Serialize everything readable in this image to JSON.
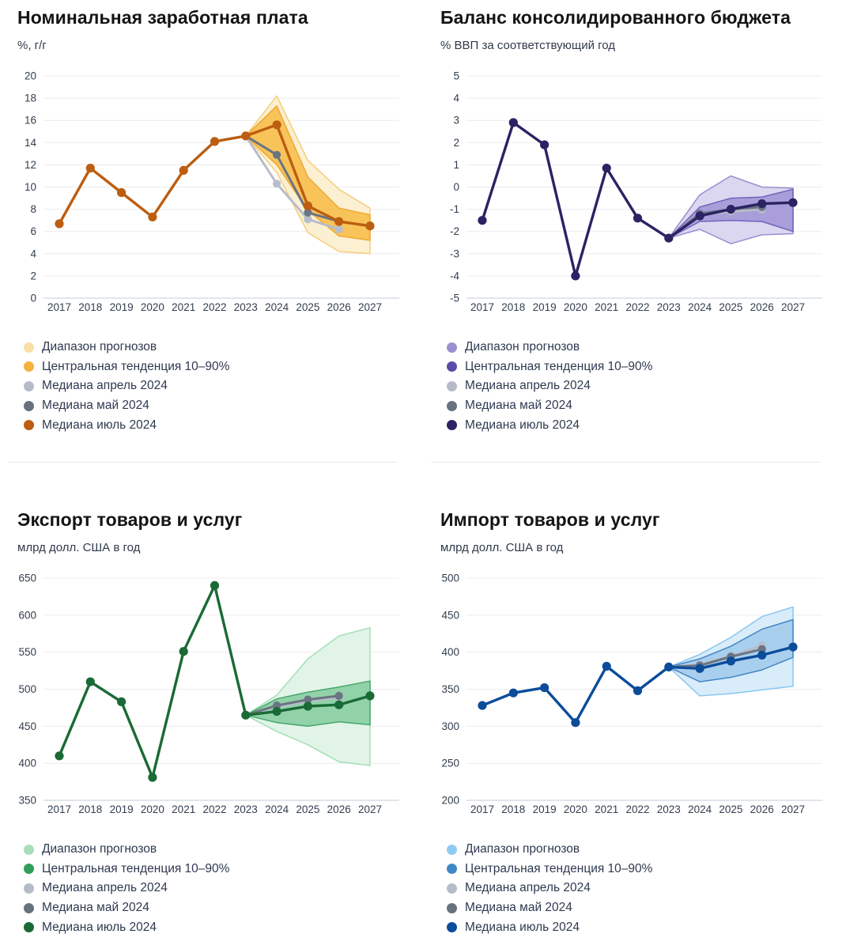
{
  "layout": {
    "background": "#FFFFFF",
    "grid": "2x2",
    "divider_color": "#E8E8E8",
    "gridline_color": "#ECECEF",
    "axisline_color": "#C3CCDA"
  },
  "chart_data": [
    {
      "type": "line",
      "title": "Номинальная заработная плата",
      "subtitle": "%, г/г",
      "years": [
        2017,
        2018,
        2019,
        2020,
        2021,
        2022,
        2023,
        2024,
        2025,
        2026,
        2027
      ],
      "y_axis": {
        "min": 0,
        "max": 20,
        "step": 2
      },
      "colors": {
        "range": {
          "fill": "#FCF0D2",
          "stroke": "#F6CD7C"
        },
        "central": {
          "fill": "#F8C45A",
          "stroke": "#F0A82F"
        },
        "april": "#B7BDC9",
        "may": "#6A7482",
        "july": "#BC5D10"
      },
      "bands": {
        "range": {
          "label": "Диапазон прогнозов",
          "years": [
            2023,
            2024,
            2025,
            2026,
            2027
          ],
          "lo": [
            14.6,
            11.3,
            5.9,
            4.2,
            4.0
          ],
          "hi": [
            14.6,
            18.2,
            12.4,
            9.8,
            8.1
          ]
        },
        "central": {
          "label": "Центральная тенденция 10–90%",
          "years": [
            2023,
            2024,
            2025,
            2026,
            2027
          ],
          "lo": [
            14.6,
            12.0,
            7.9,
            5.6,
            5.2
          ],
          "hi": [
            14.6,
            17.3,
            10.9,
            8.1,
            7.5
          ]
        }
      },
      "series": {
        "median_april": {
          "label": "Медиана апрель 2024",
          "years": [
            2023,
            2024,
            2025,
            2026
          ],
          "values": [
            14.6,
            10.3,
            7.1,
            6.2
          ]
        },
        "median_may": {
          "label": "Медиана май 2024",
          "years": [
            2023,
            2024,
            2025,
            2026
          ],
          "values": [
            14.6,
            12.9,
            7.7,
            6.9
          ]
        },
        "median_july": {
          "label": "Медиана июль 2024",
          "years": [
            2017,
            2018,
            2019,
            2020,
            2021,
            2022,
            2023,
            2024,
            2025,
            2026,
            2027
          ],
          "values": [
            6.7,
            11.7,
            9.5,
            7.3,
            11.5,
            14.1,
            14.6,
            15.6,
            8.3,
            6.9,
            6.5
          ]
        }
      },
      "legend": [
        {
          "swatch": "#F9DFA6",
          "label": "Диапазон прогнозов"
        },
        {
          "swatch": "#F6B13E",
          "label": "Центральная тенденция 10–90%"
        },
        {
          "swatch": "#B6BCC7",
          "label": "Медиана апрель 2024"
        },
        {
          "swatch": "#68727F",
          "label": "Медиана май 2024"
        },
        {
          "swatch": "#BC5D10",
          "label": "Медиана июль 2024"
        }
      ]
    },
    {
      "type": "line",
      "title": "Баланс консолидированного бюджета",
      "subtitle": "% ВВП за соответствующий год",
      "years": [
        2017,
        2018,
        2019,
        2020,
        2021,
        2022,
        2023,
        2024,
        2025,
        2026,
        2027
      ],
      "y_axis": {
        "min": -5,
        "max": 5,
        "step": 1
      },
      "colors": {
        "range": {
          "fill": "#DCD7F0",
          "stroke": "#9A8ED2"
        },
        "central": {
          "fill": "#A99ED9",
          "stroke": "#7164BE"
        },
        "april": "#B7BDC9",
        "may": "#6A7482",
        "july": "#2B2363"
      },
      "bands": {
        "range": {
          "label": "Диапазон прогнозов",
          "years": [
            2023,
            2024,
            2025,
            2026,
            2027
          ],
          "lo": [
            -2.3,
            -1.9,
            -2.55,
            -2.15,
            -2.1
          ],
          "hi": [
            -2.3,
            -0.35,
            0.5,
            0.0,
            -0.05
          ]
        },
        "central": {
          "label": "Центральная тенденция 10–90%",
          "years": [
            2023,
            2024,
            2025,
            2026,
            2027
          ],
          "lo": [
            -2.3,
            -1.55,
            -1.5,
            -1.55,
            -2.0
          ],
          "hi": [
            -2.3,
            -0.9,
            -0.5,
            -0.45,
            -0.1
          ]
        }
      },
      "series": {
        "median_april": {
          "label": "Медиана апрель 2024",
          "years": [
            2023,
            2024,
            2025,
            2026
          ],
          "values": [
            -2.3,
            -1.25,
            -1.1,
            -1.0
          ]
        },
        "median_may": {
          "label": "Медиана май 2024",
          "years": [
            2023,
            2024,
            2025,
            2026
          ],
          "values": [
            -2.3,
            -1.2,
            -1.0,
            -0.9
          ]
        },
        "median_july": {
          "label": "Медиана июль 2024",
          "years": [
            2017,
            2018,
            2019,
            2020,
            2021,
            2022,
            2023,
            2024,
            2025,
            2026,
            2027
          ],
          "values": [
            -1.5,
            2.9,
            1.9,
            -4.0,
            0.85,
            -1.4,
            -2.3,
            -1.3,
            -1.0,
            -0.75,
            -0.7
          ]
        }
      },
      "legend": [
        {
          "swatch": "#9B8FD0",
          "label": "Диапазон прогнозов"
        },
        {
          "swatch": "#5B4AA8",
          "label": "Центральная тенденция 10–90%"
        },
        {
          "swatch": "#B6BCC7",
          "label": "Медиана апрель 2024"
        },
        {
          "swatch": "#68727F",
          "label": "Медиана май 2024"
        },
        {
          "swatch": "#2B2363",
          "label": "Медиана июль 2024"
        }
      ]
    },
    {
      "type": "line",
      "title": "Экспорт товаров и услуг",
      "subtitle": "млрд долл. США в год",
      "years": [
        2017,
        2018,
        2019,
        2020,
        2021,
        2022,
        2023,
        2024,
        2025,
        2026,
        2027
      ],
      "y_axis": {
        "min": 350,
        "max": 650,
        "step": 50
      },
      "colors": {
        "range": {
          "fill": "#E1F4E7",
          "stroke": "#A3DFB7"
        },
        "central": {
          "fill": "#92D2A9",
          "stroke": "#46A76C"
        },
        "april": "#B7BDC9",
        "may": "#6A7482",
        "july": "#1A6A35"
      },
      "bands": {
        "range": {
          "label": "Диапазон прогнозов",
          "years": [
            2023,
            2024,
            2025,
            2026,
            2027
          ],
          "lo": [
            465,
            443,
            425,
            402,
            397
          ],
          "hi": [
            465,
            492,
            541,
            572,
            583
          ]
        },
        "central": {
          "label": "Центральная тенденция 10–90%",
          "years": [
            2023,
            2024,
            2025,
            2026,
            2027
          ],
          "lo": [
            465,
            455,
            450,
            456,
            452
          ],
          "hi": [
            465,
            487,
            496,
            503,
            511
          ]
        }
      },
      "series": {
        "median_april": {
          "label": "Медиана апрель 2024",
          "years": [
            2023,
            2024,
            2025,
            2026
          ],
          "values": [
            465,
            476,
            484,
            489
          ]
        },
        "median_may": {
          "label": "Медиана май 2024",
          "years": [
            2023,
            2024,
            2025,
            2026
          ],
          "values": [
            465,
            478,
            486,
            491
          ]
        },
        "median_july": {
          "label": "Медиана июль 2024",
          "years": [
            2017,
            2018,
            2019,
            2020,
            2021,
            2022,
            2023,
            2024,
            2025,
            2026,
            2027
          ],
          "values": [
            410,
            510,
            483,
            381,
            551,
            640,
            465,
            470,
            477,
            479,
            491
          ]
        }
      },
      "legend": [
        {
          "swatch": "#A9DEB9",
          "label": "Диапазон прогнозов"
        },
        {
          "swatch": "#2F9E58",
          "label": "Центральная тенденция 10–90%"
        },
        {
          "swatch": "#B6BCC7",
          "label": "Медиана апрель 2024"
        },
        {
          "swatch": "#68727F",
          "label": "Медиана май 2024"
        },
        {
          "swatch": "#1A6A35",
          "label": "Медиана июль 2024"
        }
      ]
    },
    {
      "type": "line",
      "title": "Импорт товаров и услуг",
      "subtitle": "млрд долл. США в год",
      "years": [
        2017,
        2018,
        2019,
        2020,
        2021,
        2022,
        2023,
        2024,
        2025,
        2026,
        2027
      ],
      "y_axis": {
        "min": 200,
        "max": 500,
        "step": 50
      },
      "colors": {
        "range": {
          "fill": "#D9ECFA",
          "stroke": "#89C7F0"
        },
        "central": {
          "fill": "#A9CFEE",
          "stroke": "#4386C5"
        },
        "april": "#B7BDC9",
        "may": "#6A7482",
        "july": "#0B4C9B"
      },
      "bands": {
        "range": {
          "label": "Диапазон прогнозов",
          "years": [
            2023,
            2024,
            2025,
            2026,
            2027
          ],
          "lo": [
            380,
            341,
            344,
            349,
            354
          ],
          "hi": [
            380,
            397,
            420,
            448,
            461
          ]
        },
        "central": {
          "label": "Центральная тенденция 10–90%",
          "years": [
            2023,
            2024,
            2025,
            2026,
            2027
          ],
          "lo": [
            380,
            360,
            366,
            376,
            393
          ],
          "hi": [
            380,
            391,
            408,
            431,
            444
          ]
        }
      },
      "series": {
        "median_april": {
          "label": "Медиана апрель 2024",
          "years": [
            2023,
            2024,
            2025,
            2026
          ],
          "values": [
            380,
            383,
            395,
            409
          ]
        },
        "median_may": {
          "label": "Медиана май 2024",
          "years": [
            2023,
            2024,
            2025,
            2026
          ],
          "values": [
            380,
            382,
            394,
            404
          ]
        },
        "median_july": {
          "label": "Медиана июль 2024",
          "years": [
            2017,
            2018,
            2019,
            2020,
            2021,
            2022,
            2023,
            2024,
            2025,
            2026,
            2027
          ],
          "values": [
            328,
            345,
            352,
            305,
            381,
            348,
            380,
            378,
            388,
            396,
            407
          ]
        }
      },
      "legend": [
        {
          "swatch": "#8FCBF1",
          "label": "Диапазон прогнозов"
        },
        {
          "swatch": "#3F87C7",
          "label": "Центральная тенденция 10–90%"
        },
        {
          "swatch": "#B6BCC7",
          "label": "Медиана апрель 2024"
        },
        {
          "swatch": "#68727F",
          "label": "Медиана май 2024"
        },
        {
          "swatch": "#0B4C9B",
          "label": "Медиана июль 2024"
        }
      ]
    }
  ]
}
